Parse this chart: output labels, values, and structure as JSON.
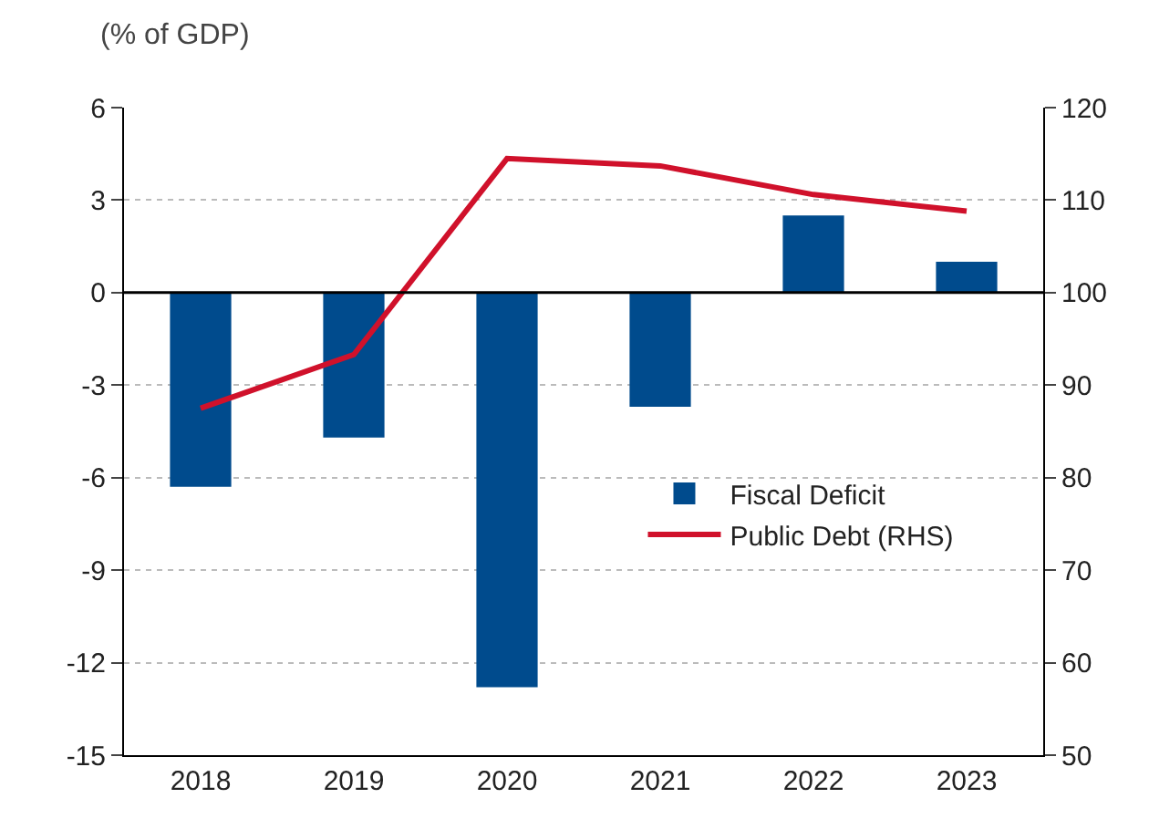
{
  "chart_data": {
    "type": "bar",
    "subtitle": "(% of GDP)",
    "categories": [
      "2018",
      "2019",
      "2020",
      "2021",
      "2022",
      "2023"
    ],
    "series": [
      {
        "name": "Fiscal Deficit",
        "color": "#004b8d",
        "values": [
          -6.3,
          -4.7,
          -12.8,
          -3.7,
          2.5,
          1.0
        ]
      },
      {
        "name": "Public Debt (RHS)",
        "type": "line",
        "axis": "y2",
        "color": "#d0112b",
        "values": [
          87.5,
          93.3,
          114.5,
          113.7,
          110.6,
          108.8
        ]
      }
    ],
    "ylim": [
      -15,
      6
    ],
    "yticks": [
      -15,
      -12,
      -9,
      -6,
      -3,
      0,
      3,
      6
    ],
    "y2lim": [
      50,
      120
    ],
    "y2ticks": [
      50,
      60,
      70,
      80,
      90,
      100,
      110,
      120
    ],
    "grid": "y",
    "legend": "right",
    "marker": "none",
    "line_style": "solid",
    "ref_lines": [
      {
        "axis": "y",
        "value": 0,
        "color": "#000000"
      }
    ]
  }
}
